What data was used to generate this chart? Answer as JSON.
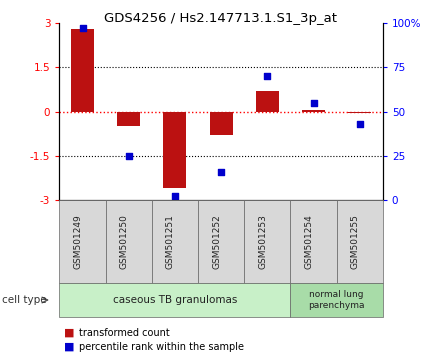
{
  "title": "GDS4256 / Hs2.147713.1.S1_3p_at",
  "samples": [
    "GSM501249",
    "GSM501250",
    "GSM501251",
    "GSM501252",
    "GSM501253",
    "GSM501254",
    "GSM501255"
  ],
  "red_bars": [
    2.8,
    -0.5,
    -2.6,
    -0.8,
    0.7,
    0.05,
    -0.05
  ],
  "blue_dots": [
    97,
    25,
    2,
    16,
    70,
    55,
    43
  ],
  "ylim_left": [
    -3,
    3
  ],
  "ylim_right": [
    0,
    100
  ],
  "yticks_left": [
    -3,
    -1.5,
    0,
    1.5,
    3
  ],
  "yticks_right": [
    0,
    25,
    50,
    75,
    100
  ],
  "ytick_labels_right": [
    "0",
    "25",
    "50",
    "75",
    "100%"
  ],
  "group1_label": "caseous TB granulomas",
  "group2_label": "normal lung\nparenchyma",
  "cell_type_label": "cell type",
  "legend_red": "transformed count",
  "legend_blue": "percentile rank within the sample",
  "bar_color": "#bb1111",
  "dot_color": "#0000cc",
  "group1_color": "#c8f0c8",
  "group2_color": "#a8dca8",
  "sample_box_color": "#d8d8d8",
  "bar_width": 0.5,
  "n_group1": 5,
  "n_group2": 2
}
